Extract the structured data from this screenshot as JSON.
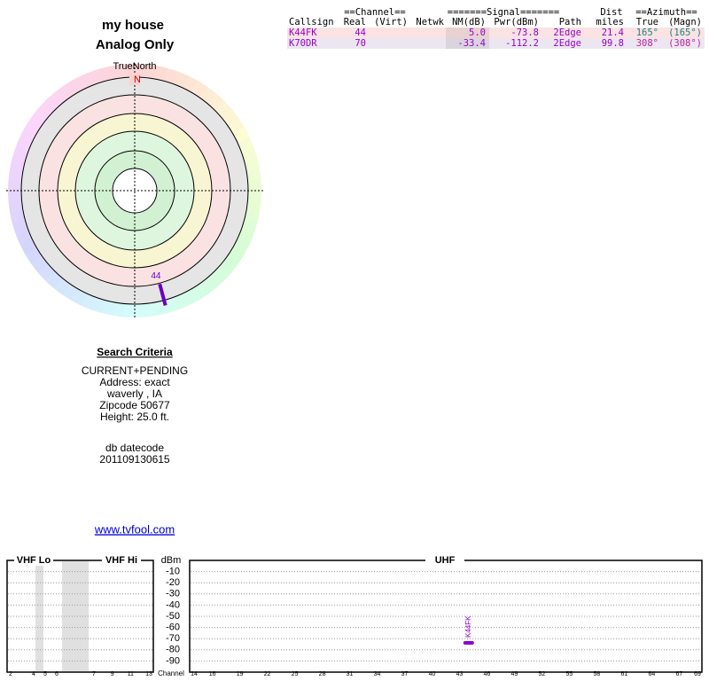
{
  "header": {
    "title": "my house",
    "subtitle": "Analog Only"
  },
  "polar": {
    "north_label": "TrueNorth",
    "north": "N",
    "markers": [
      {
        "label": "44",
        "azimuth": 165,
        "color": "#6a00c0"
      }
    ]
  },
  "table": {
    "groups": [
      "==Channel==",
      "=======Signal=======",
      "Dist",
      "==Azimuth=="
    ],
    "columns": [
      "Callsign",
      "Real",
      "(Virt)",
      "Netwk",
      "NM(dB)",
      "Pwr(dBm)",
      "Path",
      "miles",
      "True",
      "(Magn)"
    ],
    "rows": [
      {
        "cells": [
          "K44FK",
          "44",
          null,
          null,
          "5.0",
          "-73.8",
          "2Edge",
          "21.4",
          "165°",
          "(165°)"
        ],
        "color": "#9a00c8",
        "azimuth_color": "#1f8080",
        "background": "#fbe3e3"
      },
      {
        "cells": [
          "K70DR",
          "70",
          null,
          null,
          "-33.4",
          "-112.2",
          "2Edge",
          "99.8",
          "308°",
          "(308°)"
        ],
        "color": "#9a00c8",
        "azimuth_color": "#c0209a",
        "background": "#ece6f0"
      }
    ]
  },
  "search": {
    "title": "Search Criteria",
    "lines": [
      "CURRENT+PENDING",
      "Address: exact",
      "waverly , IA",
      "Zipcode 50677",
      "Height: 25.0 ft."
    ],
    "datecode_label": "db datecode",
    "datecode": "201109130615"
  },
  "link": "www.tvfool.com",
  "spectrum": {
    "bands": [
      "VHF Lo",
      "VHF Hi",
      "UHF"
    ],
    "y_label": "dBm",
    "x_label": "Channel",
    "ylim": [
      -100,
      0
    ],
    "yticks": [
      -10,
      -20,
      -30,
      -40,
      -50,
      -60,
      -70,
      -80,
      -90
    ],
    "vhf_lo_xlim": [
      2,
      6
    ],
    "vhf_lo_ticks": [
      2,
      4,
      5,
      6
    ],
    "vhf_hi_xlim": [
      7,
      13
    ],
    "vhf_hi_ticks": [
      7,
      9,
      11,
      13
    ],
    "uhf_xlim": [
      14,
      69
    ],
    "uhf_ticks": [
      14,
      16,
      19,
      22,
      25,
      28,
      31,
      34,
      37,
      40,
      43,
      46,
      49,
      52,
      55,
      58,
      61,
      64,
      67,
      69
    ],
    "stations": [
      {
        "name": "K44FK",
        "channel": 44,
        "pwr": -73.8,
        "color": "#8a00d0"
      }
    ]
  }
}
